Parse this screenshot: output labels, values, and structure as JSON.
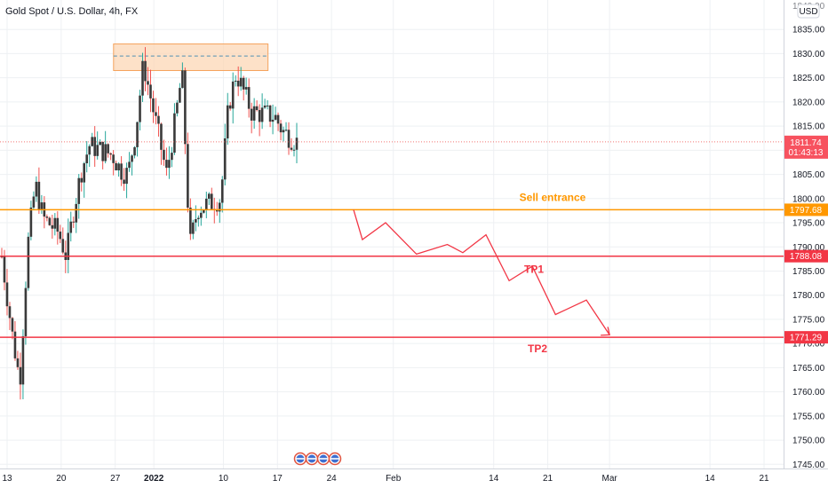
{
  "header": {
    "title": "Gold Spot / U.S. Dollar, 4h, FX",
    "currency_button": "USD"
  },
  "colors": {
    "up": "#26a69a",
    "down": "#ef5350",
    "candle_body": "#3a3a3a",
    "sell": "#ff9800",
    "tp": "#f23645",
    "zone_fill": "#fcd7b5",
    "zone_border": "#f5a25d",
    "grid": "#eef0f3",
    "axis_text": "#131722"
  },
  "chart_data": {
    "type": "candlestick",
    "symbol": "Gold Spot / U.S. Dollar",
    "interval": "4h",
    "exchange": "FX",
    "y_axis": {
      "min": 1745,
      "max": 1840,
      "ticks": [
        1835,
        1830,
        1825,
        1820,
        1815,
        1810,
        1805,
        1800,
        1795,
        1790,
        1785,
        1780,
        1775,
        1770,
        1765,
        1760,
        1755,
        1750,
        1745
      ],
      "top_partial_label": "1840.00",
      "format_decimals": 2
    },
    "x_axis": {
      "labels": [
        {
          "label": "13",
          "date": "2021-12-13"
        },
        {
          "label": "20",
          "date": "2021-12-20"
        },
        {
          "label": "27",
          "date": "2021-12-27"
        },
        {
          "label": "2022",
          "date": "2022-01-01",
          "bold": true
        },
        {
          "label": "10",
          "date": "2022-01-10"
        },
        {
          "label": "17",
          "date": "2022-01-17"
        },
        {
          "label": "24",
          "date": "2022-01-24"
        },
        {
          "label": "Feb",
          "date": "2022-02-01"
        },
        {
          "label": "14",
          "date": "2022-02-14"
        },
        {
          "label": "21",
          "date": "2022-02-21"
        },
        {
          "label": "Mar",
          "date": "2022-03-01"
        },
        {
          "label": "14",
          "date": "2022-03-14"
        },
        {
          "label": "21",
          "date": "2022-03-21"
        }
      ]
    },
    "price_path": [
      {
        "date": "2021-12-13",
        "price": 1788
      },
      {
        "date": "2021-12-14",
        "price": 1772
      },
      {
        "date": "2021-12-15",
        "price": 1762
      },
      {
        "date": "2021-12-16",
        "price": 1790
      },
      {
        "date": "2021-12-17",
        "price": 1803
      },
      {
        "date": "2021-12-18",
        "price": 1796
      },
      {
        "date": "2021-12-20",
        "price": 1793
      },
      {
        "date": "2021-12-21",
        "price": 1788
      },
      {
        "date": "2021-12-22",
        "price": 1798
      },
      {
        "date": "2021-12-23",
        "price": 1806
      },
      {
        "date": "2021-12-24",
        "price": 1811
      },
      {
        "date": "2021-12-27",
        "price": 1809
      },
      {
        "date": "2021-12-28",
        "price": 1806
      },
      {
        "date": "2021-12-29",
        "price": 1805
      },
      {
        "date": "2021-12-30",
        "price": 1814
      },
      {
        "date": "2021-12-31",
        "price": 1828
      },
      {
        "date": "2022-01-03",
        "price": 1805
      },
      {
        "date": "2022-01-04",
        "price": 1815
      },
      {
        "date": "2022-01-05",
        "price": 1826
      },
      {
        "date": "2022-01-06",
        "price": 1790
      },
      {
        "date": "2022-01-07",
        "price": 1798
      },
      {
        "date": "2022-01-10",
        "price": 1800
      },
      {
        "date": "2022-01-11",
        "price": 1819
      },
      {
        "date": "2022-01-12",
        "price": 1826
      },
      {
        "date": "2022-01-13",
        "price": 1822
      },
      {
        "date": "2022-01-14",
        "price": 1818
      },
      {
        "date": "2022-01-17",
        "price": 1817
      },
      {
        "date": "2022-01-18",
        "price": 1814
      },
      {
        "date": "2022-01-19",
        "price": 1811.74
      }
    ],
    "current_price": {
      "value": 1811.74,
      "countdown": "01:43:13"
    },
    "resistance_zone": {
      "from": "2021-12-30",
      "to": "2022-01-19",
      "low": 1826.5,
      "high": 1832,
      "mid": 1829.5
    },
    "levels": [
      {
        "name": "Sell entrance",
        "value": 1797.68,
        "label": "1797.68"
      },
      {
        "name": "TP1",
        "value": 1788.08,
        "label": "1788.08"
      },
      {
        "name": "TP2",
        "value": 1771.29,
        "label": "1771.29"
      }
    ],
    "projection_path": [
      {
        "date": "2022-01-25",
        "price": 1797.68
      },
      {
        "date": "2022-01-28",
        "price": 1791.5
      },
      {
        "date": "2022-01-31",
        "price": 1795
      },
      {
        "date": "2022-02-04",
        "price": 1788.5
      },
      {
        "date": "2022-02-08",
        "price": 1790.5
      },
      {
        "date": "2022-02-10",
        "price": 1788.8
      },
      {
        "date": "2022-02-13",
        "price": 1792.5
      },
      {
        "date": "2022-02-16",
        "price": 1783
      },
      {
        "date": "2022-02-19",
        "price": 1786
      },
      {
        "date": "2022-02-22",
        "price": 1776
      },
      {
        "date": "2022-02-26",
        "price": 1779
      },
      {
        "date": "2022-03-01",
        "price": 1771.8
      }
    ],
    "annotations": [
      {
        "text": "Sell entrance",
        "color": "sell"
      },
      {
        "text": "TP1",
        "color": "tp"
      },
      {
        "text": "TP2",
        "color": "tp"
      }
    ],
    "event_icons": 4
  }
}
